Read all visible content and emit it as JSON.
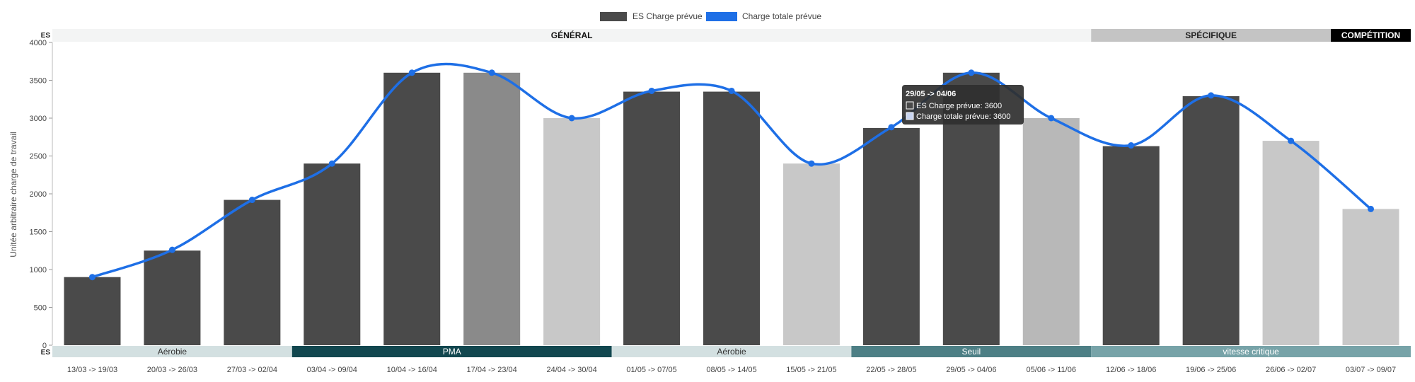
{
  "legend": [
    {
      "label": "ES Charge prévue",
      "color": "#4a4a4a"
    },
    {
      "label": "Charge totale prévue",
      "color": "#1e6fe6"
    }
  ],
  "top_band": {
    "axis_label": "ES",
    "segments": [
      {
        "label": "GÉNÉRAL",
        "from": 0,
        "to": 13,
        "bg": "#f3f4f4",
        "fg": "#111111"
      },
      {
        "label": "SPÉCIFIQUE",
        "from": 13,
        "to": 16,
        "bg": "#c4c4c4",
        "fg": "#222222"
      },
      {
        "label": "COMPÉTITION",
        "from": 16,
        "to": 17,
        "bg": "#000000",
        "fg": "#ffffff"
      }
    ]
  },
  "bottom_band": {
    "axis_label": "ES",
    "segments": [
      {
        "label": "Aérobie",
        "from": 0,
        "to": 3,
        "bg": "#d3e0e1",
        "fg": "#333333"
      },
      {
        "label": "PMA",
        "from": 3,
        "to": 7,
        "bg": "#12474f",
        "fg": "#ffffff"
      },
      {
        "label": "Aérobie",
        "from": 7,
        "to": 10,
        "bg": "#d3e0e1",
        "fg": "#333333"
      },
      {
        "label": "Seuil",
        "from": 10,
        "to": 13,
        "bg": "#4d7f85",
        "fg": "#ffffff"
      },
      {
        "label": "vitesse critique",
        "from": 13,
        "to": 17,
        "bg": "#77a3a8",
        "fg": "#ffffff"
      }
    ]
  },
  "tooltip": {
    "title": "29/05 -> 04/06",
    "lines": [
      "ES Charge prévue: 3600",
      "Charge totale prévue: 3600"
    ],
    "index": 11
  },
  "chart_data": {
    "type": "bar",
    "ylabel": "Unitée arbitraire charge de travail",
    "ylim": [
      0,
      4000
    ],
    "yticks": [
      0,
      500,
      1000,
      1500,
      2000,
      2500,
      3000,
      3500,
      4000
    ],
    "categories": [
      "13/03 -> 19/03",
      "20/03 -> 26/03",
      "27/03 -> 02/04",
      "03/04 -> 09/04",
      "10/04 -> 16/04",
      "17/04 -> 23/04",
      "24/04 -> 30/04",
      "01/05 -> 07/05",
      "08/05 -> 14/05",
      "15/05 -> 21/05",
      "22/05 -> 28/05",
      "29/05 -> 04/06",
      "05/06 -> 11/06",
      "12/06 -> 18/06",
      "19/06 -> 25/06",
      "26/06 -> 02/07",
      "03/07 -> 09/07"
    ],
    "series": [
      {
        "name": "ES Charge prévue",
        "type": "bar",
        "values": [
          900,
          1250,
          1920,
          2400,
          3600,
          3600,
          3000,
          3350,
          3350,
          2400,
          2870,
          3600,
          3000,
          2630,
          3290,
          2700,
          1800
        ],
        "colors": [
          "#4a4a4a",
          "#4a4a4a",
          "#4a4a4a",
          "#4a4a4a",
          "#4a4a4a",
          "#8a8a8a",
          "#c8c8c8",
          "#4a4a4a",
          "#4a4a4a",
          "#c8c8c8",
          "#4a4a4a",
          "#4a4a4a",
          "#b8b8b8",
          "#4a4a4a",
          "#4a4a4a",
          "#c8c8c8",
          "#c8c8c8"
        ]
      },
      {
        "name": "Charge totale prévue",
        "type": "line",
        "color": "#1e6fe6",
        "values": [
          900,
          1260,
          1920,
          2400,
          3600,
          3600,
          3000,
          3360,
          3360,
          2400,
          2880,
          3600,
          3000,
          2640,
          3300,
          2700,
          1800
        ]
      }
    ],
    "grid": false,
    "legend_position": "top-center"
  }
}
